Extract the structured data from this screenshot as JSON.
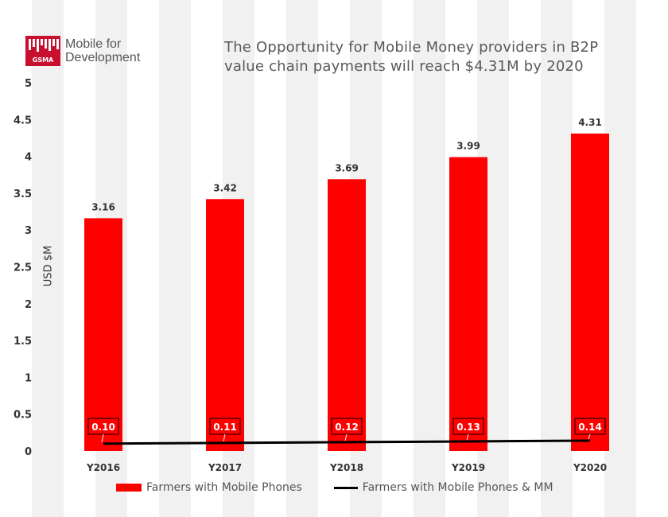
{
  "logo": {
    "brand": "GSMA",
    "caption_line1": "Mobile for",
    "caption_line2": "Development"
  },
  "title": "The Opportunity for Mobile Money providers in B2P value chain payments will reach $4.31M by 2020",
  "colors": {
    "bar": "#ff0000",
    "line": "#000000",
    "label_box": "#ff0000"
  },
  "chart_data": {
    "type": "bar",
    "categories": [
      "Y2016",
      "Y2017",
      "Y2018",
      "Y2019",
      "Y2020"
    ],
    "series": [
      {
        "name": "Farmers with Mobile Phones",
        "type": "bar",
        "values": [
          3.16,
          3.42,
          3.69,
          3.99,
          4.31
        ]
      },
      {
        "name": "Farmers with Mobile Phones & MM",
        "type": "line",
        "values": [
          0.1,
          0.11,
          0.12,
          0.13,
          0.14
        ]
      }
    ],
    "bar_labels": [
      "3.16",
      "3.42",
      "3.69",
      "3.99",
      "4.31"
    ],
    "line_labels": [
      "0.10",
      "0.11",
      "0.12",
      "0.13",
      "0.14"
    ],
    "ylabel": "USD $M",
    "xlabel": "",
    "ylim": [
      0,
      5
    ],
    "yticks": [
      "0",
      "0.5",
      "1",
      "1.5",
      "2",
      "2.5",
      "3",
      "3.5",
      "4",
      "4.5",
      "5"
    ],
    "legend_position": "bottom"
  }
}
